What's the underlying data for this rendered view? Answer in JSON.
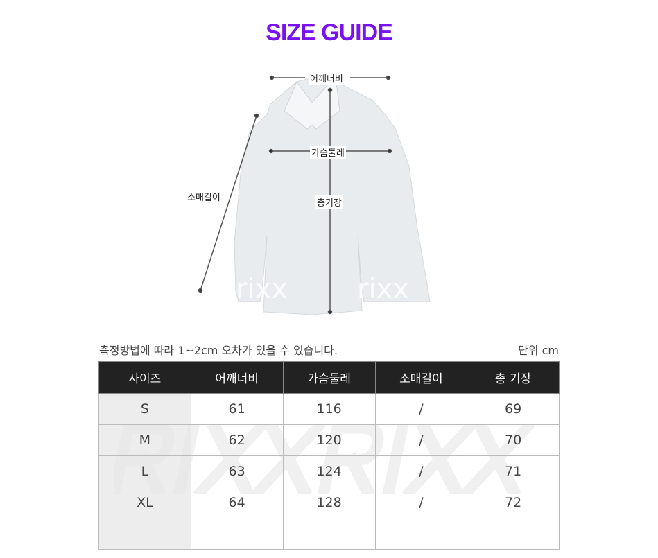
{
  "title": "SIZE GUIDE",
  "diagram": {
    "shoulder_label": "어깨너비",
    "chest_label": "가슴둘레",
    "sleeve_label": "소매길이",
    "length_label": "총기장",
    "watermark": "rixx"
  },
  "note": "측정방법에 따라 1~2cm 오차가 있을 수 있습니다.",
  "unit": "단위 cm",
  "table": {
    "headers": [
      "사이즈",
      "어깨너비",
      "가슴둘레",
      "소매길이",
      "총 기장"
    ],
    "rows": [
      [
        "S",
        "61",
        "116",
        "/",
        "69"
      ],
      [
        "M",
        "62",
        "120",
        "/",
        "70"
      ],
      [
        "L",
        "63",
        "124",
        "/",
        "71"
      ],
      [
        "XL",
        "64",
        "128",
        "/",
        "72"
      ],
      [
        "",
        "",
        "",
        "",
        ""
      ]
    ]
  },
  "watermark": "RIXXRIXX",
  "colors": {
    "title": "#7a12f0",
    "header_bg": "#222222"
  }
}
